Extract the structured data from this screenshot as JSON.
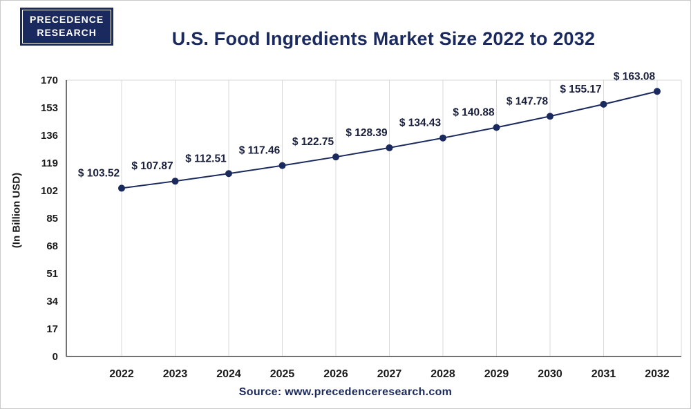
{
  "logo": {
    "line1": "PRECEDENCE",
    "line2": "RESEARCH"
  },
  "header": {
    "title": "U.S. Food Ingredients Market Size 2022 to 2032"
  },
  "chart_data": {
    "type": "line",
    "title": "U.S. Food Ingredients Market Size 2022 to 2032",
    "categories": [
      "2022",
      "2023",
      "2024",
      "2025",
      "2026",
      "2027",
      "2028",
      "2029",
      "2030",
      "2031",
      "2032"
    ],
    "values": [
      103.52,
      107.87,
      112.51,
      117.46,
      122.75,
      128.39,
      134.43,
      140.88,
      147.78,
      155.17,
      163.08
    ],
    "point_labels": [
      "$ 103.52",
      "$ 107.87",
      "$ 112.51",
      "$ 117.46",
      "$ 122.75",
      "$ 128.39",
      "$ 134.43",
      "$ 140.88",
      "$ 147.78",
      "$ 155.17",
      "$ 163.08"
    ],
    "xlabel": "",
    "ylabel": "(In Billion USD)",
    "yticks": [
      0,
      17,
      34,
      51,
      68,
      85,
      102,
      119,
      136,
      153,
      170
    ],
    "ylim": [
      0,
      170
    ],
    "grid": "vertical",
    "legend": "none",
    "line_color": "#1b2a5e",
    "point_color": "#1b2a5e",
    "label_color": "#1a1f3c",
    "tick_color": "#1a1a1a",
    "grid_color": "#d9d9d9",
    "axis_color": "#444444"
  },
  "footer": {
    "source": "Source: www.precedenceresearch.com"
  }
}
